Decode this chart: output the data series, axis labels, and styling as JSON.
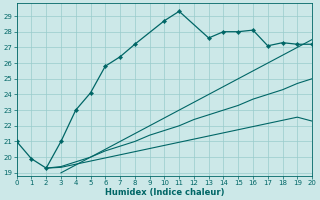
{
  "xlabel": "Humidex (Indice chaleur)",
  "xlim": [
    0,
    20
  ],
  "ylim": [
    18.8,
    29.8
  ],
  "yticks": [
    19,
    20,
    21,
    22,
    23,
    24,
    25,
    26,
    27,
    28,
    29
  ],
  "xticks": [
    0,
    1,
    2,
    3,
    4,
    5,
    6,
    7,
    8,
    9,
    10,
    11,
    12,
    13,
    14,
    15,
    16,
    17,
    18,
    19,
    20
  ],
  "bg_color": "#cce8e8",
  "grid_color": "#99cccc",
  "line_color": "#006666",
  "s1_x": [
    0,
    1,
    2,
    3,
    4,
    5,
    6,
    7,
    8,
    10,
    11,
    13,
    14,
    15,
    16,
    17,
    18,
    19,
    20
  ],
  "s1_y": [
    21.0,
    19.9,
    19.3,
    21.0,
    23.0,
    24.1,
    25.8,
    26.4,
    27.2,
    28.7,
    29.3,
    27.6,
    28.0,
    28.0,
    28.1,
    27.1,
    27.3,
    27.2,
    27.2
  ],
  "s2_x": [
    2,
    3,
    4,
    5,
    6,
    7,
    8,
    9,
    10,
    11,
    12,
    13,
    14,
    15,
    16,
    17,
    18,
    19,
    20
  ],
  "s2_y": [
    19.3,
    19.35,
    19.55,
    19.75,
    19.95,
    20.15,
    20.35,
    20.55,
    20.75,
    20.95,
    21.15,
    21.35,
    21.55,
    21.75,
    21.95,
    22.15,
    22.35,
    22.55,
    22.3
  ],
  "s3_x": [
    2,
    3,
    4,
    5,
    6,
    7,
    8,
    9,
    10,
    11,
    12,
    13,
    14,
    15,
    16,
    17,
    18,
    19,
    20
  ],
  "s3_y": [
    19.3,
    19.4,
    19.7,
    20.0,
    20.4,
    20.7,
    21.0,
    21.4,
    21.7,
    22.0,
    22.4,
    22.7,
    23.0,
    23.3,
    23.7,
    24.0,
    24.3,
    24.7,
    25.0
  ],
  "s4_x": [
    3,
    4,
    5,
    6,
    7,
    8,
    9,
    10,
    11,
    12,
    13,
    14,
    15,
    16,
    17,
    18,
    19,
    20
  ],
  "s4_y": [
    19.0,
    19.5,
    20.0,
    20.5,
    21.0,
    21.5,
    22.0,
    22.5,
    23.0,
    23.5,
    24.0,
    24.5,
    25.0,
    25.5,
    26.0,
    26.5,
    27.0,
    27.5
  ],
  "tick_fontsize": 5.0,
  "xlabel_fontsize": 6.0
}
